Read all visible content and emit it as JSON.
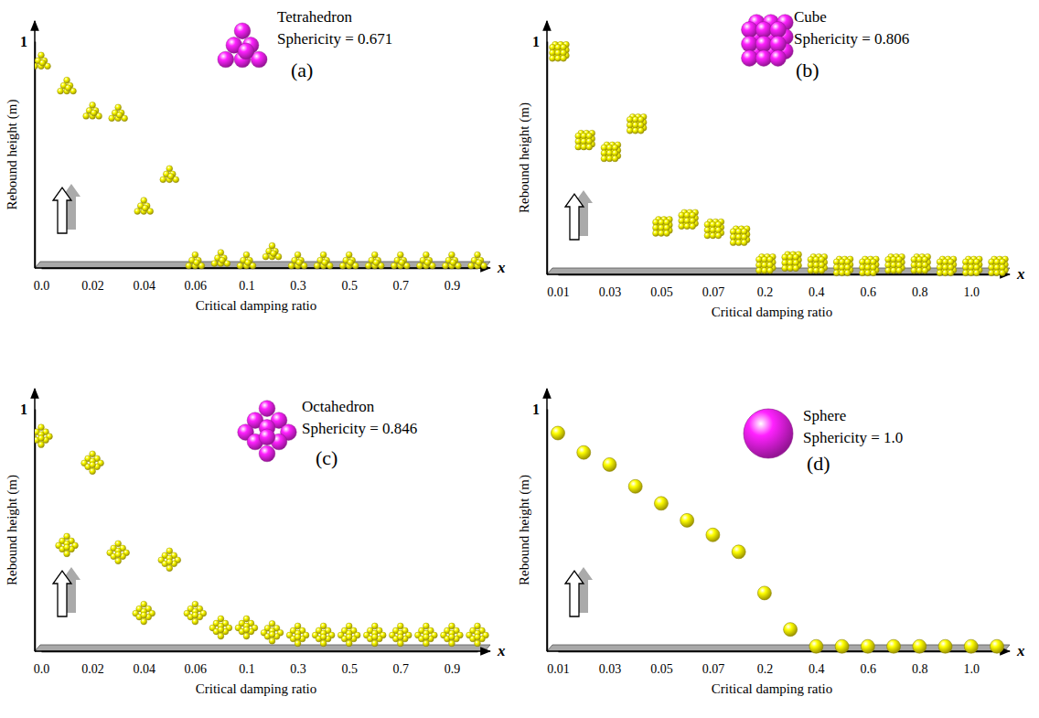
{
  "chart_data": [
    {
      "type": "scatter",
      "title": "Tetrahedron",
      "subtitle": "Sphericity = 0.671",
      "annotations": [
        "(a)",
        "x"
      ],
      "x_label": "Critical damping ratio",
      "y_label": "Rebound height (m)",
      "categories": [
        "0.0",
        null,
        "0.02",
        null,
        "0.04",
        null,
        "0.06",
        null,
        "0.1",
        null,
        "0.3",
        null,
        "0.5",
        null,
        "0.7",
        null,
        "0.9",
        null
      ],
      "values": [
        0.91,
        0.8,
        0.69,
        0.68,
        0.27,
        0.41,
        0.03,
        0.04,
        0.03,
        0.07,
        0.03,
        0.03,
        0.03,
        0.03,
        0.03,
        0.03,
        0.03,
        0.03
      ],
      "ylim": [
        0,
        1
      ],
      "yticks": [
        1
      ],
      "color": "#f2e600",
      "marker": "tetrahedron"
    },
    {
      "type": "scatter",
      "title": "Cube",
      "subtitle": "Sphericity = 0.806",
      "annotations": [
        "(b)",
        "x"
      ],
      "x_label": "Critical damping ratio",
      "y_label": "Rebound height (m)",
      "categories": [
        "0.01",
        null,
        "0.03",
        null,
        "0.05",
        null,
        "0.07",
        null,
        "0.2",
        null,
        "0.4",
        null,
        "0.6",
        null,
        "0.8",
        null,
        "1.0",
        null
      ],
      "values": [
        0.95,
        0.57,
        0.52,
        0.64,
        0.2,
        0.23,
        0.19,
        0.16,
        0.04,
        0.05,
        0.04,
        0.03,
        0.03,
        0.04,
        0.04,
        0.03,
        0.03,
        0.03
      ],
      "ylim": [
        0,
        1
      ],
      "yticks": [
        1
      ],
      "color": "#f2e600",
      "marker": "cube"
    },
    {
      "type": "scatter",
      "title": "Octahedron",
      "subtitle": "Sphericity = 0.846",
      "annotations": [
        "(c)",
        "x"
      ],
      "x_label": "Critical damping ratio",
      "y_label": "Rebound height (m)",
      "categories": [
        "0.0",
        null,
        "0.02",
        null,
        "0.04",
        null,
        "0.06",
        null,
        "0.1",
        null,
        "0.3",
        null,
        "0.5",
        null,
        "0.7",
        null,
        "0.9",
        null
      ],
      "values": [
        0.89,
        0.44,
        0.78,
        0.41,
        0.16,
        0.38,
        0.16,
        0.1,
        0.1,
        0.08,
        0.07,
        0.07,
        0.07,
        0.07,
        0.07,
        0.07,
        0.07,
        0.07
      ],
      "ylim": [
        0,
        1
      ],
      "yticks": [
        1
      ],
      "color": "#f2e600",
      "marker": "octahedron"
    },
    {
      "type": "scatter",
      "title": "Sphere",
      "subtitle": "Sphericity = 1.0",
      "annotations": [
        "(d)",
        "x"
      ],
      "x_label": "Critical damping ratio",
      "y_label": "Rebound height (m)",
      "categories": [
        "0.01",
        null,
        "0.03",
        null,
        "0.05",
        null,
        "0.07",
        null,
        "0.2",
        null,
        "0.4",
        null,
        "0.6",
        null,
        "0.8",
        null,
        "1.0",
        null
      ],
      "values": [
        0.9,
        0.82,
        0.77,
        0.68,
        0.61,
        0.54,
        0.48,
        0.41,
        0.24,
        0.09,
        0.02,
        0.02,
        0.02,
        0.02,
        0.02,
        0.02,
        0.02,
        0.02
      ],
      "ylim": [
        0,
        1
      ],
      "yticks": [
        1
      ],
      "color": "#f2e600",
      "marker": "sphere"
    }
  ]
}
